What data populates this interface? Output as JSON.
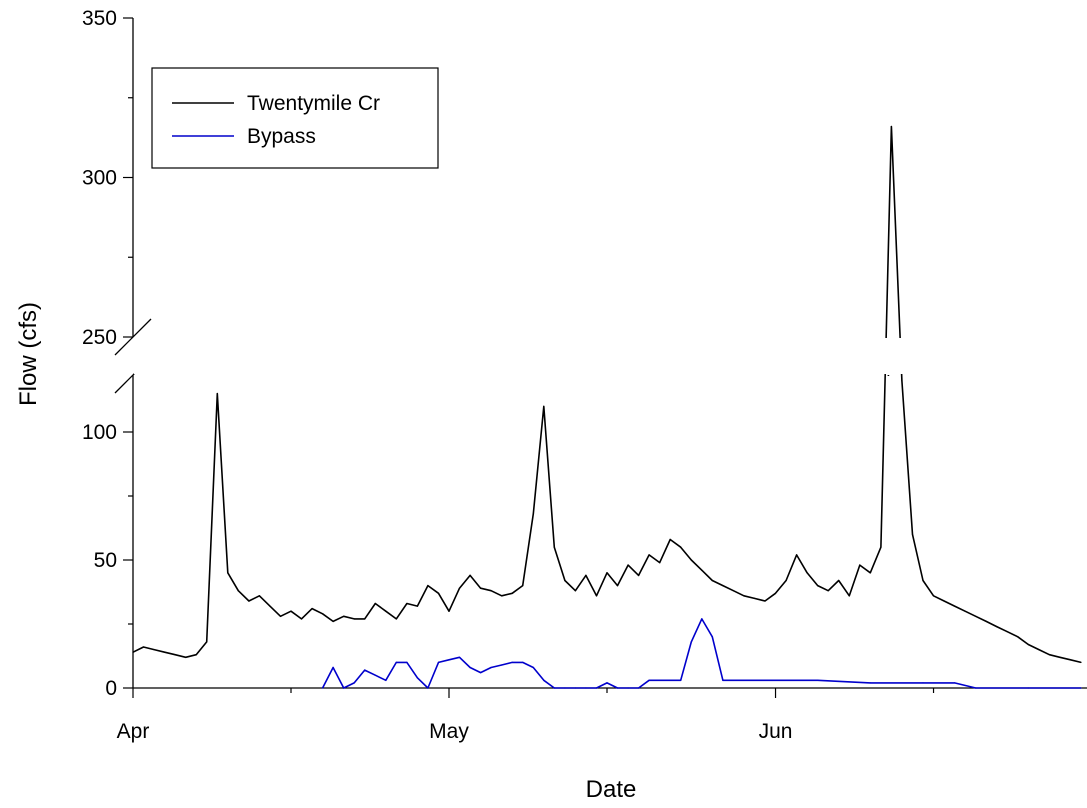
{
  "chart_data": {
    "type": "line",
    "xlabel": "Date",
    "ylabel": "Flow (cfs)",
    "x_ticks": [
      "Apr",
      "May",
      "Jun"
    ],
    "x_range": [
      "2000-04-01",
      "2000-06-30"
    ],
    "y_axis_break": {
      "lower_range": [
        0,
        120
      ],
      "upper_range": [
        250,
        350
      ]
    },
    "y_ticks_lower": [
      0,
      50,
      100
    ],
    "y_ticks_upper": [
      250,
      300,
      350
    ],
    "legend": {
      "position": "top-left",
      "entries": [
        "Twentymile Cr",
        "Bypass"
      ]
    },
    "colors": {
      "Twentymile Cr": "#000000",
      "Bypass": "#0000cc"
    },
    "series": [
      {
        "name": "Twentymile Cr",
        "x": [
          "2000-04-01",
          "2000-04-02",
          "2000-04-03",
          "2000-04-04",
          "2000-04-05",
          "2000-04-06",
          "2000-04-07",
          "2000-04-08",
          "2000-04-09",
          "2000-04-10",
          "2000-04-11",
          "2000-04-12",
          "2000-04-13",
          "2000-04-14",
          "2000-04-15",
          "2000-04-16",
          "2000-04-17",
          "2000-04-18",
          "2000-04-19",
          "2000-04-20",
          "2000-04-21",
          "2000-04-22",
          "2000-04-23",
          "2000-04-24",
          "2000-04-25",
          "2000-04-26",
          "2000-04-27",
          "2000-04-28",
          "2000-04-29",
          "2000-04-30",
          "2000-05-01",
          "2000-05-02",
          "2000-05-03",
          "2000-05-04",
          "2000-05-05",
          "2000-05-06",
          "2000-05-07",
          "2000-05-08",
          "2000-05-09",
          "2000-05-10",
          "2000-05-11",
          "2000-05-12",
          "2000-05-13",
          "2000-05-14",
          "2000-05-15",
          "2000-05-16",
          "2000-05-17",
          "2000-05-18",
          "2000-05-19",
          "2000-05-20",
          "2000-05-21",
          "2000-05-22",
          "2000-05-23",
          "2000-05-24",
          "2000-05-25",
          "2000-05-26",
          "2000-05-27",
          "2000-05-28",
          "2000-05-29",
          "2000-05-30",
          "2000-05-31",
          "2000-06-01",
          "2000-06-02",
          "2000-06-03",
          "2000-06-04",
          "2000-06-05",
          "2000-06-06",
          "2000-06-07",
          "2000-06-08",
          "2000-06-09",
          "2000-06-10",
          "2000-06-11",
          "2000-06-12",
          "2000-06-13",
          "2000-06-14",
          "2000-06-15",
          "2000-06-16",
          "2000-06-17",
          "2000-06-18",
          "2000-06-19",
          "2000-06-20",
          "2000-06-21",
          "2000-06-22",
          "2000-06-23",
          "2000-06-24",
          "2000-06-25",
          "2000-06-26",
          "2000-06-27",
          "2000-06-28",
          "2000-06-29",
          "2000-06-30"
        ],
        "values": [
          14,
          16,
          15,
          14,
          13,
          12,
          13,
          18,
          115,
          45,
          38,
          34,
          36,
          32,
          28,
          30,
          27,
          31,
          29,
          26,
          28,
          27,
          27,
          33,
          30,
          27,
          33,
          32,
          40,
          37,
          30,
          39,
          44,
          39,
          38,
          36,
          37,
          40,
          68,
          110,
          55,
          42,
          38,
          44,
          36,
          45,
          40,
          48,
          44,
          52,
          49,
          58,
          55,
          50,
          46,
          42,
          40,
          38,
          36,
          35,
          34,
          37,
          42,
          52,
          45,
          40,
          38,
          42,
          36,
          48,
          45,
          55,
          316,
          120,
          60,
          42,
          36,
          34,
          32,
          30,
          28,
          26,
          24,
          22,
          20,
          17,
          15,
          13,
          12,
          11,
          10
        ]
      },
      {
        "name": "Bypass",
        "x": [
          "2000-04-19",
          "2000-04-20",
          "2000-04-21",
          "2000-04-22",
          "2000-04-23",
          "2000-04-24",
          "2000-04-25",
          "2000-04-26",
          "2000-04-27",
          "2000-04-28",
          "2000-04-29",
          "2000-04-30",
          "2000-05-01",
          "2000-05-02",
          "2000-05-03",
          "2000-05-04",
          "2000-05-05",
          "2000-05-06",
          "2000-05-07",
          "2000-05-08",
          "2000-05-09",
          "2000-05-10",
          "2000-05-11",
          "2000-05-12",
          "2000-05-13",
          "2000-05-14",
          "2000-05-15",
          "2000-05-16",
          "2000-05-17",
          "2000-05-18",
          "2000-05-19",
          "2000-05-20",
          "2000-05-21",
          "2000-05-22",
          "2000-05-23",
          "2000-05-24",
          "2000-05-25",
          "2000-05-26",
          "2000-05-27",
          "2000-05-28",
          "2000-05-29",
          "2000-05-30",
          "2000-05-31",
          "2000-06-01",
          "2000-06-05",
          "2000-06-10",
          "2000-06-15",
          "2000-06-18",
          "2000-06-20",
          "2000-06-25",
          "2000-06-30"
        ],
        "values": [
          0,
          8,
          0,
          2,
          7,
          5,
          3,
          10,
          10,
          4,
          0,
          10,
          11,
          12,
          8,
          6,
          8,
          9,
          10,
          10,
          8,
          3,
          0,
          0,
          0,
          0,
          0,
          2,
          0,
          0,
          0,
          3,
          3,
          3,
          3,
          18,
          27,
          20,
          3,
          3,
          3,
          3,
          3,
          3,
          3,
          2,
          2,
          2,
          0,
          0,
          0
        ]
      }
    ]
  }
}
